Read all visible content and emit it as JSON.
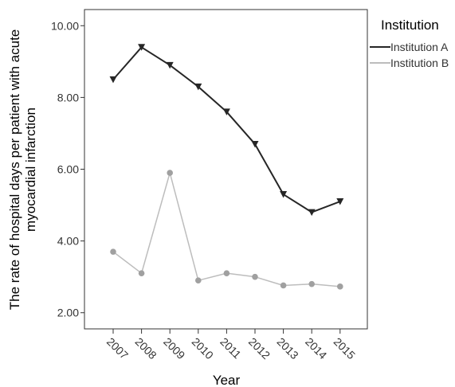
{
  "chart_data": {
    "type": "line",
    "xlabel": "Year",
    "ylabel_lines": [
      "The rate of hospital days per patient with acute",
      "myocardial infarction"
    ],
    "x": [
      "2007",
      "2008",
      "2009",
      "2010",
      "2011",
      "2012",
      "2013",
      "2014",
      "2015"
    ],
    "yticks": [
      "2.00",
      "4.00",
      "6.00",
      "8.00",
      "10.00"
    ],
    "ylim": [
      1.55,
      10.45
    ],
    "grid": false,
    "legend": {
      "title": "Institution",
      "position": "right"
    },
    "series": [
      {
        "name": "Institution A",
        "color": "#262626",
        "marker": "triangle-down",
        "values": [
          8.5,
          9.4,
          8.9,
          8.3,
          7.6,
          6.7,
          5.3,
          4.8,
          5.1
        ]
      },
      {
        "name": "Institution B",
        "color": "#bdbdbd",
        "marker": "circle",
        "values": [
          3.7,
          3.1,
          5.9,
          2.9,
          3.1,
          3.0,
          2.76,
          2.8,
          2.73
        ]
      }
    ]
  }
}
